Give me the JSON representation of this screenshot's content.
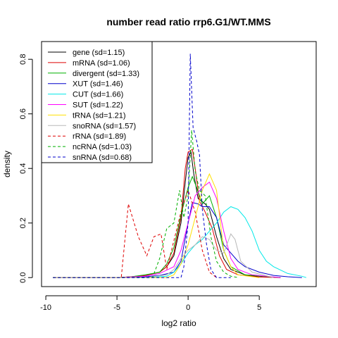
{
  "chart_data": {
    "type": "line",
    "title": "number read ratio rrp6.G1/WT.MMS",
    "xlabel": "log2 ratio",
    "ylabel": "density",
    "xlim": [
      -10.3,
      9.0
    ],
    "ylim": [
      -0.033,
      0.865
    ],
    "x_ticks": [
      -10,
      -5,
      0,
      5
    ],
    "y_ticks": [
      0.0,
      0.2,
      0.4,
      0.6,
      0.8
    ],
    "legend_position": "top-left",
    "series": [
      {
        "name": "gene (sd=1.15)",
        "color": "#000000",
        "dashed": false,
        "points": [
          [
            -9.5,
            0
          ],
          [
            -5,
            0
          ],
          [
            -4,
            0.003
          ],
          [
            -3,
            0.008
          ],
          [
            -2,
            0.02
          ],
          [
            -1.5,
            0.04
          ],
          [
            -1,
            0.08
          ],
          [
            -0.5,
            0.2
          ],
          [
            -0.2,
            0.35
          ],
          [
            0,
            0.44
          ],
          [
            0.2,
            0.46
          ],
          [
            0.4,
            0.38
          ],
          [
            0.7,
            0.29
          ],
          [
            1.2,
            0.27
          ],
          [
            1.5,
            0.25
          ],
          [
            2,
            0.15
          ],
          [
            2.5,
            0.07
          ],
          [
            3,
            0.03
          ],
          [
            4,
            0.01
          ],
          [
            5,
            0.003
          ],
          [
            6.5,
            0
          ]
        ]
      },
      {
        "name": "mRNA (sd=1.06)",
        "color": "#df0000",
        "dashed": false,
        "points": [
          [
            -9.5,
            0
          ],
          [
            -5,
            0
          ],
          [
            -4,
            0.003
          ],
          [
            -3,
            0.008
          ],
          [
            -2,
            0.02
          ],
          [
            -1.5,
            0.04
          ],
          [
            -1,
            0.09
          ],
          [
            -0.5,
            0.22
          ],
          [
            -0.2,
            0.4
          ],
          [
            0,
            0.46
          ],
          [
            0.3,
            0.47
          ],
          [
            0.5,
            0.4
          ],
          [
            0.8,
            0.28
          ],
          [
            1.2,
            0.24
          ],
          [
            1.7,
            0.18
          ],
          [
            2.2,
            0.08
          ],
          [
            2.7,
            0.03
          ],
          [
            3.5,
            0.01
          ],
          [
            5,
            0.002
          ],
          [
            6.5,
            0
          ]
        ]
      },
      {
        "name": "divergent (sd=1.33)",
        "color": "#00b000",
        "dashed": false,
        "points": [
          [
            -9.5,
            0
          ],
          [
            -5,
            0
          ],
          [
            -4,
            0.003
          ],
          [
            -3,
            0.01
          ],
          [
            -2,
            0.02
          ],
          [
            -1.5,
            0.05
          ],
          [
            -1,
            0.11
          ],
          [
            -0.5,
            0.23
          ],
          [
            0,
            0.33
          ],
          [
            0.3,
            0.37
          ],
          [
            0.6,
            0.33
          ],
          [
            1,
            0.27
          ],
          [
            1.5,
            0.3
          ],
          [
            2,
            0.22
          ],
          [
            2.5,
            0.1
          ],
          [
            3,
            0.04
          ],
          [
            4,
            0.01
          ],
          [
            6.5,
            0
          ]
        ]
      },
      {
        "name": "XUT (sd=1.46)",
        "color": "#0000cc",
        "dashed": false,
        "points": [
          [
            -9.5,
            0
          ],
          [
            -5,
            0
          ],
          [
            -3,
            0.003
          ],
          [
            -2,
            0.008
          ],
          [
            -1,
            0.02
          ],
          [
            -0.5,
            0.06
          ],
          [
            0,
            0.2
          ],
          [
            0.3,
            0.275
          ],
          [
            0.7,
            0.27
          ],
          [
            1,
            0.26
          ],
          [
            1.5,
            0.26
          ],
          [
            2,
            0.22
          ],
          [
            2.5,
            0.12
          ],
          [
            3,
            0.09
          ],
          [
            3.5,
            0.06
          ],
          [
            4,
            0.04
          ],
          [
            5,
            0.02
          ],
          [
            6,
            0.008
          ],
          [
            7,
            0.003
          ],
          [
            8,
            0
          ]
        ]
      },
      {
        "name": "CUT (sd=1.66)",
        "color": "#00e8e8",
        "dashed": false,
        "points": [
          [
            -9.5,
            0
          ],
          [
            -3,
            0
          ],
          [
            -1.5,
            0.005
          ],
          [
            -1,
            0.02
          ],
          [
            -0.5,
            0.05
          ],
          [
            0,
            0.09
          ],
          [
            0.5,
            0.12
          ],
          [
            1,
            0.14
          ],
          [
            1.5,
            0.17
          ],
          [
            2,
            0.2
          ],
          [
            2.5,
            0.24
          ],
          [
            3,
            0.26
          ],
          [
            3.5,
            0.25
          ],
          [
            4,
            0.22
          ],
          [
            4.5,
            0.17
          ],
          [
            5,
            0.1
          ],
          [
            5.5,
            0.06
          ],
          [
            6,
            0.04
          ],
          [
            7,
            0.015
          ],
          [
            8,
            0.005
          ],
          [
            8.3,
            0
          ]
        ]
      },
      {
        "name": "SUT (sd=1.22)",
        "color": "#ff00ff",
        "dashed": false,
        "points": [
          [
            -9.5,
            0
          ],
          [
            -5,
            0
          ],
          [
            -3,
            0.005
          ],
          [
            -2,
            0.015
          ],
          [
            -1,
            0.04
          ],
          [
            -0.5,
            0.1
          ],
          [
            0,
            0.2
          ],
          [
            0.5,
            0.3
          ],
          [
            1,
            0.33
          ],
          [
            1.5,
            0.35
          ],
          [
            2,
            0.29
          ],
          [
            2.5,
            0.17
          ],
          [
            3,
            0.07
          ],
          [
            3.5,
            0.03
          ],
          [
            4.5,
            0.01
          ],
          [
            6.5,
            0
          ]
        ]
      },
      {
        "name": "tRNA (sd=1.21)",
        "color": "#ffe000",
        "dashed": false,
        "points": [
          [
            -9.5,
            0
          ],
          [
            -1.5,
            0
          ],
          [
            -1,
            0.01
          ],
          [
            -0.5,
            0.05
          ],
          [
            0,
            0.12
          ],
          [
            0.5,
            0.22
          ],
          [
            1,
            0.32
          ],
          [
            1.5,
            0.38
          ],
          [
            2,
            0.32
          ],
          [
            2.5,
            0.1
          ],
          [
            3,
            0.04
          ],
          [
            3.5,
            0.01
          ],
          [
            5,
            0
          ]
        ]
      },
      {
        "name": "snoRNA (sd=1.57)",
        "color": "#b8b8b8",
        "dashed": false,
        "points": [
          [
            -9.5,
            0
          ],
          [
            -3,
            0
          ],
          [
            -1.5,
            0.01
          ],
          [
            -1,
            0.03
          ],
          [
            -0.5,
            0.07
          ],
          [
            0,
            0.1
          ],
          [
            0.5,
            0.12
          ],
          [
            1,
            0.15
          ],
          [
            1.5,
            0.14
          ],
          [
            2,
            0.1
          ],
          [
            2.5,
            0.09
          ],
          [
            3,
            0.16
          ],
          [
            3.3,
            0.14
          ],
          [
            3.7,
            0.06
          ],
          [
            4.5,
            0.02
          ],
          [
            6,
            0
          ]
        ]
      },
      {
        "name": "rRNA (sd=1.89)",
        "color": "#df0000",
        "dashed": true,
        "points": [
          [
            -9.5,
            0
          ],
          [
            -4.7,
            0
          ],
          [
            -4.2,
            0.27
          ],
          [
            -3.5,
            0.15
          ],
          [
            -2.9,
            0.08
          ],
          [
            -2.4,
            0.15
          ],
          [
            -1.9,
            0.16
          ],
          [
            -1.5,
            0.03
          ],
          [
            -0.5,
            0.24
          ],
          [
            0,
            0.32
          ],
          [
            0.5,
            0.24
          ],
          [
            1,
            0.1
          ],
          [
            1.5,
            0.02
          ],
          [
            2,
            0
          ]
        ]
      },
      {
        "name": "ncRNA (sd=1.03)",
        "color": "#00b000",
        "dashed": true,
        "points": [
          [
            -9.5,
            0
          ],
          [
            -2.5,
            0
          ],
          [
            -2,
            0.07
          ],
          [
            -1.5,
            0.18
          ],
          [
            -1,
            0.2
          ],
          [
            -0.6,
            0.32
          ],
          [
            -0.3,
            0.22
          ],
          [
            0,
            0.3
          ],
          [
            0.25,
            0.54
          ],
          [
            0.5,
            0.39
          ],
          [
            0.8,
            0.32
          ],
          [
            1.2,
            0.3
          ],
          [
            1.6,
            0.15
          ],
          [
            2,
            0.06
          ],
          [
            2.5,
            0.02
          ],
          [
            3,
            0.005
          ],
          [
            3.5,
            0
          ]
        ]
      },
      {
        "name": "snRNA (sd=0.68)",
        "color": "#0000cc",
        "dashed": true,
        "points": [
          [
            -9.5,
            0
          ],
          [
            -0.5,
            0
          ],
          [
            -0.3,
            0.04
          ],
          [
            0,
            0.2
          ],
          [
            0.15,
            0.82
          ],
          [
            0.35,
            0.55
          ],
          [
            0.6,
            0.5
          ],
          [
            0.8,
            0.45
          ],
          [
            1,
            0.25
          ],
          [
            1.3,
            0.12
          ],
          [
            1.6,
            0.03
          ],
          [
            2,
            0
          ],
          [
            3,
            0
          ]
        ]
      }
    ]
  }
}
